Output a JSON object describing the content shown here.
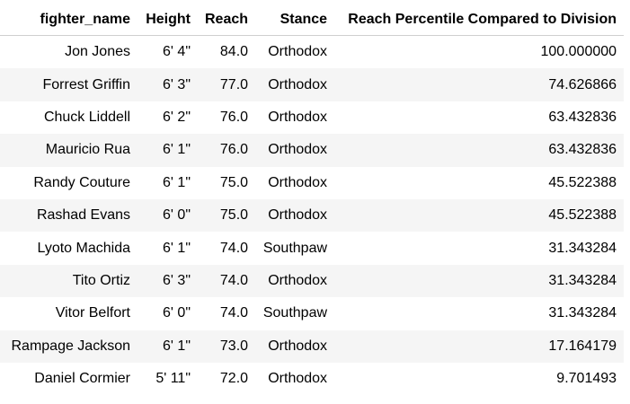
{
  "table": {
    "columns": [
      "fighter_name",
      "Height",
      "Reach",
      "Stance",
      "Reach Percentile Compared to Division"
    ],
    "rows": [
      [
        "Jon Jones",
        "6' 4\"",
        "84.0",
        "Orthodox",
        "100.000000"
      ],
      [
        "Forrest Griffin",
        "6' 3\"",
        "77.0",
        "Orthodox",
        "74.626866"
      ],
      [
        "Chuck Liddell",
        "6' 2\"",
        "76.0",
        "Orthodox",
        "63.432836"
      ],
      [
        "Mauricio Rua",
        "6' 1\"",
        "76.0",
        "Orthodox",
        "63.432836"
      ],
      [
        "Randy Couture",
        "6' 1\"",
        "75.0",
        "Orthodox",
        "45.522388"
      ],
      [
        "Rashad Evans",
        "6' 0\"",
        "75.0",
        "Orthodox",
        "45.522388"
      ],
      [
        "Lyoto Machida",
        "6' 1\"",
        "74.0",
        "Southpaw",
        "31.343284"
      ],
      [
        "Tito Ortiz",
        "6' 3\"",
        "74.0",
        "Orthodox",
        "31.343284"
      ],
      [
        "Vitor Belfort",
        "6' 0\"",
        "74.0",
        "Southpaw",
        "31.343284"
      ],
      [
        "Rampage Jackson",
        "6' 1\"",
        "73.0",
        "Orthodox",
        "17.164179"
      ],
      [
        "Daniel Cormier",
        "5' 11\"",
        "72.0",
        "Orthodox",
        "9.701493"
      ]
    ]
  }
}
